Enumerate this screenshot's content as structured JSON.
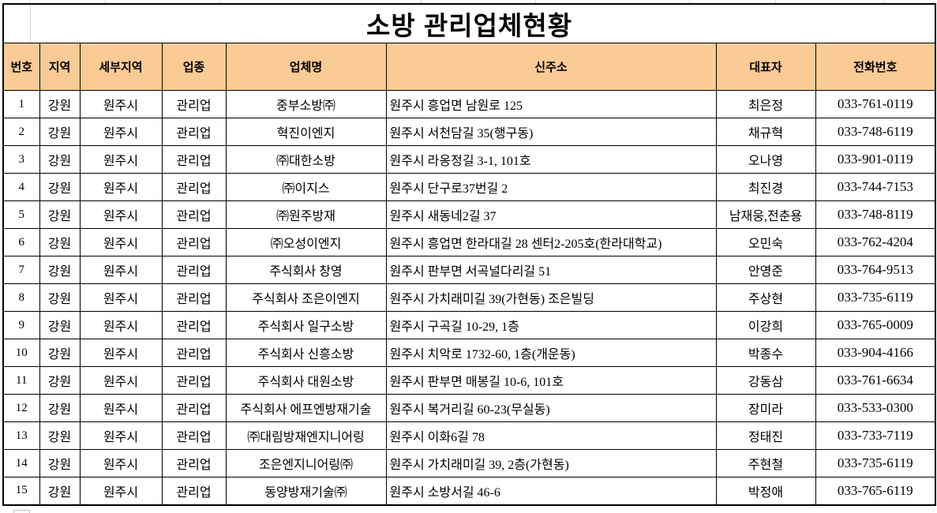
{
  "title": "소방 관리업체현황",
  "colors": {
    "header_bg": "#fbcb96",
    "border": "#000000",
    "gridline": "#d8d8d8",
    "text": "#000000"
  },
  "table": {
    "columns": [
      {
        "key": "no",
        "label": "번호"
      },
      {
        "key": "region",
        "label": "지역"
      },
      {
        "key": "subregion",
        "label": "세부지역"
      },
      {
        "key": "industry",
        "label": "업종"
      },
      {
        "key": "company",
        "label": "업체명"
      },
      {
        "key": "address",
        "label": "신주소"
      },
      {
        "key": "ceo",
        "label": "대표자"
      },
      {
        "key": "phone",
        "label": "전화번호"
      }
    ],
    "rows": [
      [
        "1",
        "강원",
        "원주시",
        "관리업",
        "중부소방㈜",
        "원주시 흥업면 남원로 125",
        "최은정",
        "033-761-0119"
      ],
      [
        "2",
        "강원",
        "원주시",
        "관리업",
        "혁진이엔지",
        "원주시 서천담길 35(행구동)",
        "채규혁",
        "033-748-6119"
      ],
      [
        "3",
        "강원",
        "원주시",
        "관리업",
        "㈜대한소방",
        "원주시 라옹정길 3-1, 101호",
        "오나영",
        "033-901-0119"
      ],
      [
        "4",
        "강원",
        "원주시",
        "관리업",
        "㈜이지스",
        "원주시 단구로37번길 2",
        "최진경",
        "033-744-7153"
      ],
      [
        "5",
        "강원",
        "원주시",
        "관리업",
        "㈜원주방재",
        "원주시 새동네2길 37",
        "남재웅,전춘용",
        "033-748-8119"
      ],
      [
        "6",
        "강원",
        "원주시",
        "관리업",
        "㈜오성이엔지",
        "원주시 흥업면 한라대길 28 센터2-205호(한라대학교)",
        "오민숙",
        "033-762-4204"
      ],
      [
        "7",
        "강원",
        "원주시",
        "관리업",
        "주식회사 창영",
        "원주시 판부면 서곡널다리길 51",
        "안영준",
        "033-764-9513"
      ],
      [
        "8",
        "강원",
        "원주시",
        "관리업",
        "주식회사 조은이엔지",
        "원주시 가치래미길 39(가현동) 조은빌딩",
        "주상현",
        "033-735-6119"
      ],
      [
        "9",
        "강원",
        "원주시",
        "관리업",
        "주식회사 일구소방",
        "원주시 구곡길 10-29, 1층",
        "이강희",
        "033-765-0009"
      ],
      [
        "10",
        "강원",
        "원주시",
        "관리업",
        "주식회사 신흥소방",
        "원주시 치악로 1732-60, 1층(개운동)",
        "박종수",
        "033-904-4166"
      ],
      [
        "11",
        "강원",
        "원주시",
        "관리업",
        "주식회사 대원소방",
        "원주시 판부면 매봉길 10-6, 101호",
        "강동삼",
        "033-761-6634"
      ],
      [
        "12",
        "강원",
        "원주시",
        "관리업",
        "주식회사 에프엔방재기술",
        "원주시 복거리길 60-23(무실동)",
        "장미라",
        "033-533-0300"
      ],
      [
        "13",
        "강원",
        "원주시",
        "관리업",
        "㈜대림방재엔지니어링",
        "원주시 이화6길 78",
        "정태진",
        "033-733-7119"
      ],
      [
        "14",
        "강원",
        "원주시",
        "관리업",
        "조은엔지니어링㈜",
        "원주시 가치래미길 39, 2층(가현동)",
        "주현철",
        "033-735-6119"
      ],
      [
        "15",
        "강원",
        "원주시",
        "관리업",
        "동양방재기술㈜",
        "원주시 소방서길 46-6",
        "박정애",
        "033-765-6119"
      ]
    ]
  }
}
